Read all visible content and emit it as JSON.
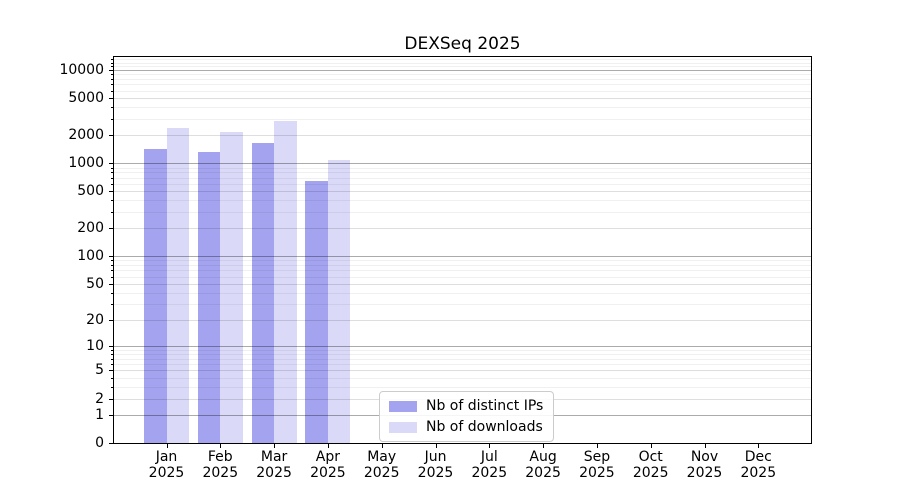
{
  "title": "DEXSeq 2025",
  "legend": {
    "items": [
      {
        "label": "Nb of distinct IPs",
        "color": "#a3a3ef"
      },
      {
        "label": "Nb of downloads",
        "color": "#dadaf8"
      }
    ]
  },
  "chart_data": {
    "type": "bar",
    "title": "DEXSeq 2025",
    "categories": [
      "Jan 2025",
      "Feb 2025",
      "Mar 2025",
      "Apr 2025",
      "May 2025",
      "Jun 2025",
      "Jul 2025",
      "Aug 2025",
      "Sep 2025",
      "Oct 2025",
      "Nov 2025",
      "Dec 2025"
    ],
    "series": [
      {
        "name": "Nb of distinct IPs",
        "color": "#a3a3ef",
        "values": [
          1410,
          1330,
          1660,
          640,
          0,
          0,
          0,
          0,
          0,
          0,
          0,
          0
        ]
      },
      {
        "name": "Nb of downloads",
        "color": "#dadaf8",
        "values": [
          2370,
          2160,
          2840,
          1080,
          0,
          0,
          0,
          0,
          0,
          0,
          0,
          0
        ]
      }
    ],
    "xlabel": "",
    "ylabel": "",
    "yscale": "log10(1+x)",
    "y_ticks": [
      0,
      1,
      2,
      5,
      10,
      20,
      50,
      100,
      200,
      500,
      1000,
      2000,
      5000,
      10000
    ],
    "y_tick_labels": [
      "0",
      "1",
      "2",
      "5",
      "10",
      "20",
      "50",
      "100",
      "200",
      "500",
      "1000",
      "2000",
      "5000",
      "10000"
    ],
    "ylim": [
      0,
      13800
    ],
    "grid": true,
    "legend_position": "lower center"
  }
}
